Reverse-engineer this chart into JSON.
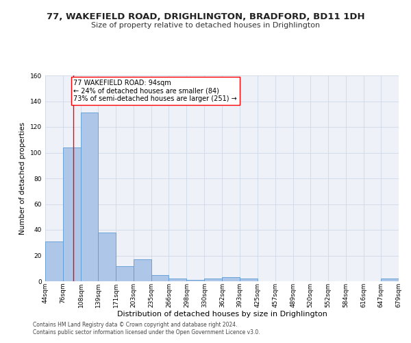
{
  "title": "77, WAKEFIELD ROAD, DRIGHLINGTON, BRADFORD, BD11 1DH",
  "subtitle": "Size of property relative to detached houses in Drighlington",
  "xlabel": "Distribution of detached houses by size in Drighlington",
  "ylabel": "Number of detached properties",
  "bar_edges": [
    44,
    76,
    108,
    139,
    171,
    203,
    235,
    266,
    298,
    330,
    362,
    393,
    425,
    457,
    489,
    520,
    552,
    584,
    616,
    647,
    679
  ],
  "bar_heights": [
    31,
    104,
    131,
    38,
    12,
    17,
    5,
    2,
    1,
    2,
    3,
    2,
    0,
    0,
    0,
    0,
    0,
    0,
    0,
    2
  ],
  "bar_color": "#aec6e8",
  "bar_edge_color": "#5b9bd5",
  "grid_color": "#d0d8e8",
  "bg_color": "#eef2f8",
  "red_line_x": 94,
  "annotation_text": "77 WAKEFIELD ROAD: 94sqm\n← 24% of detached houses are smaller (84)\n73% of semi-detached houses are larger (251) →",
  "footnote1": "Contains HM Land Registry data © Crown copyright and database right 2024.",
  "footnote2": "Contains public sector information licensed under the Open Government Licence v3.0.",
  "ylim": [
    0,
    160
  ],
  "yticks": [
    0,
    20,
    40,
    60,
    80,
    100,
    120,
    140,
    160
  ],
  "title_fontsize": 9.5,
  "subtitle_fontsize": 8,
  "ylabel_fontsize": 7.5,
  "xlabel_fontsize": 8,
  "tick_fontsize": 6.5,
  "footnote_fontsize": 5.5,
  "annotation_fontsize": 7
}
